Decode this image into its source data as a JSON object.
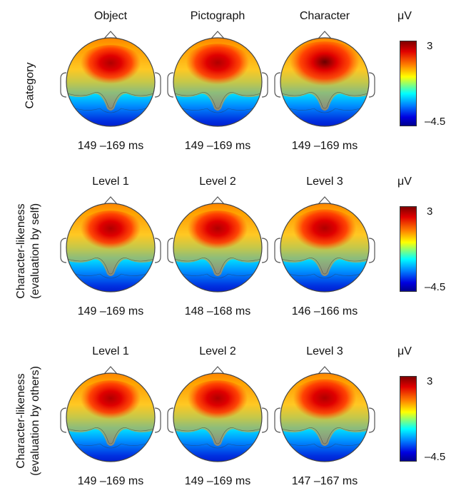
{
  "unit": "μV",
  "chart_data": {
    "type": "heatmap",
    "color_scale": {
      "max": 3,
      "min": -4.5,
      "max_label": "3",
      "min_label": "–4.5",
      "unit": "μV"
    },
    "rows": [
      {
        "label": "Category",
        "label2": "",
        "panels": [
          {
            "title": "Object",
            "time": "149 –169 ms",
            "intensity": 0.85
          },
          {
            "title": "Pictograph",
            "time": "149 –169 ms",
            "intensity": 0.9
          },
          {
            "title": "Character",
            "time": "149 –169 ms",
            "intensity": 1.0
          }
        ]
      },
      {
        "label": "Character-likeness",
        "label2": "(evaluation by self)",
        "panels": [
          {
            "title": "Level 1",
            "time": "149 –169 ms",
            "intensity": 0.85
          },
          {
            "title": "Level 2",
            "time": "148 –168 ms",
            "intensity": 0.85
          },
          {
            "title": "Level 3",
            "time": "146 –166 ms",
            "intensity": 0.9
          }
        ]
      },
      {
        "label": "Character-likeness",
        "label2": "(evaluation by others)",
        "panels": [
          {
            "title": "Level 1",
            "time": "149 –169 ms",
            "intensity": 0.85
          },
          {
            "title": "Level 2",
            "time": "149 –169 ms",
            "intensity": 0.85
          },
          {
            "title": "Level 3",
            "time": "147 –167 ms",
            "intensity": 0.9
          }
        ]
      }
    ]
  }
}
